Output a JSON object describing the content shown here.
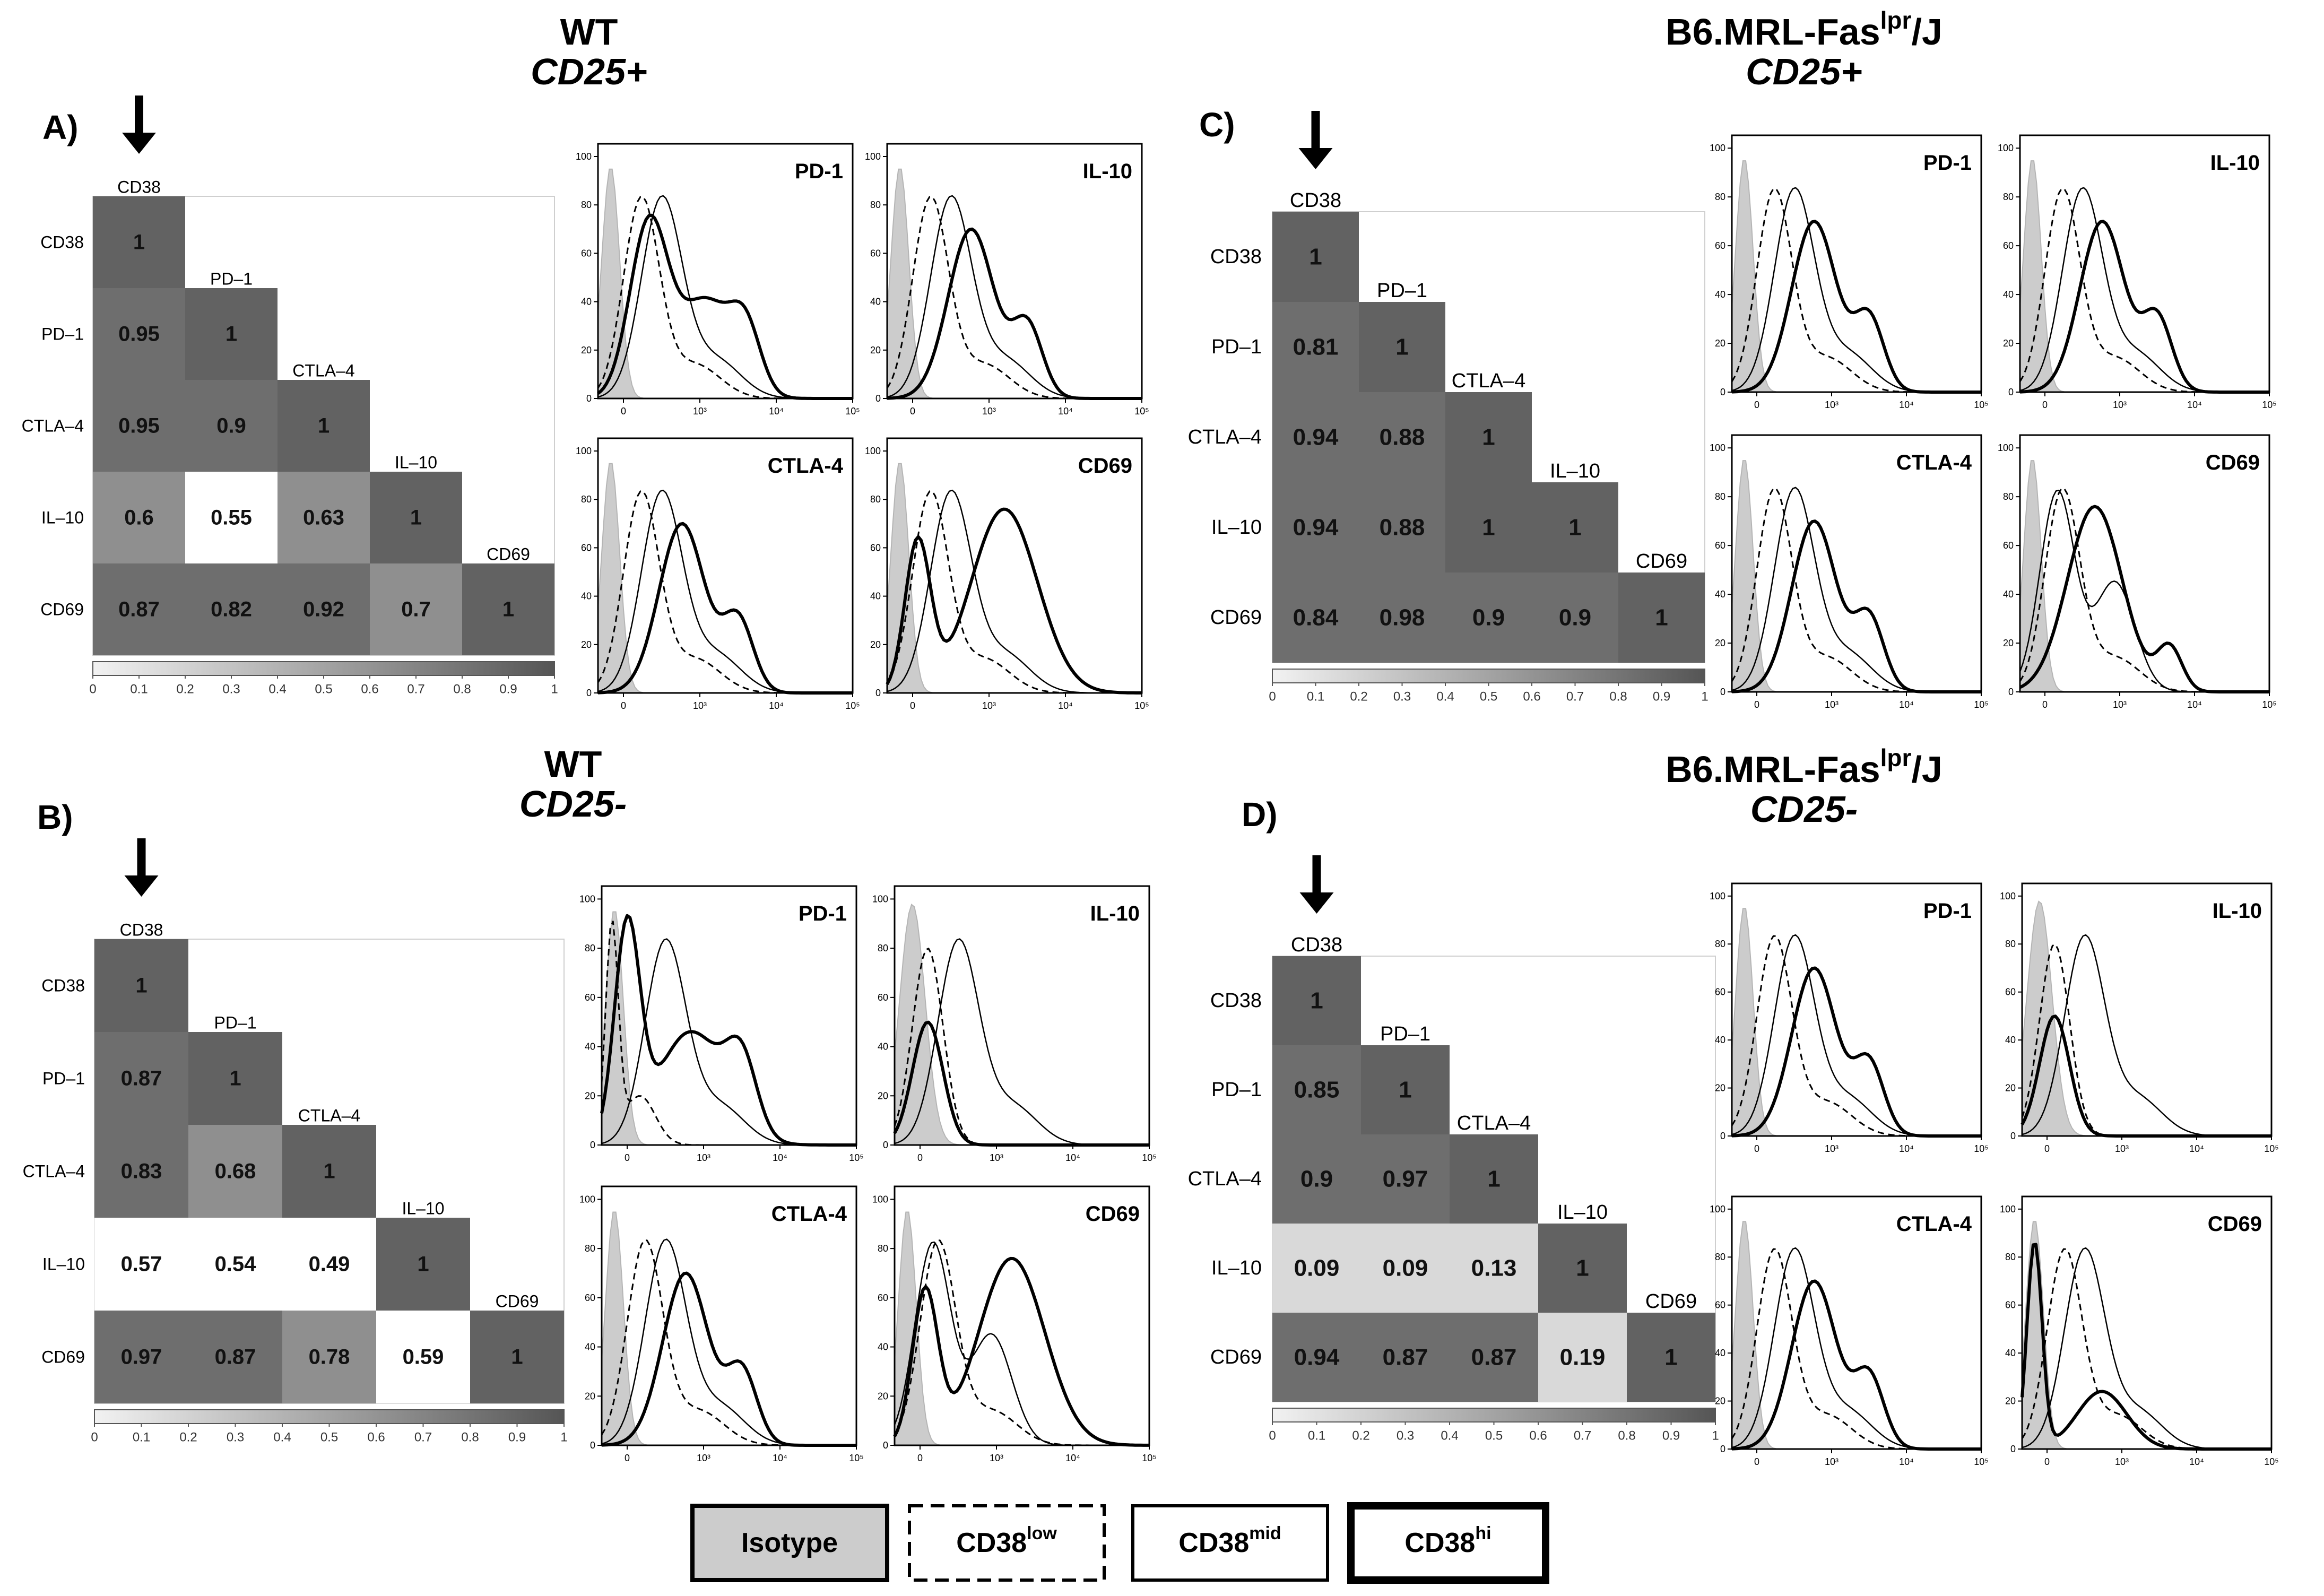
{
  "labels": {
    "cd38": "CD38",
    "pd1": "PD–1",
    "ctla4": "CTLA–4",
    "il10": "IL–10",
    "cd69": "CD69"
  },
  "legend": {
    "isotype": "Isotype",
    "low_base": "CD38",
    "low_sup": "low",
    "mid_base": "CD38",
    "mid_sup": "mid",
    "hi_base": "CD38",
    "hi_sup": "hi"
  },
  "colors": {
    "cell_dark": "#626262",
    "isotype_fill": "#cccccc",
    "ink": "#000000"
  },
  "chart_data": [
    {
      "panel": "A)",
      "strain": "WT",
      "subset": "CD25+",
      "type": "heatmap",
      "variables": [
        "CD38",
        "PD–1",
        "CTLA–4",
        "IL–10",
        "CD69"
      ],
      "matrix": [
        [
          1
        ],
        [
          0.95,
          1
        ],
        [
          0.95,
          0.9,
          1
        ],
        [
          0.6,
          0.55,
          0.63,
          1
        ],
        [
          0.87,
          0.82,
          0.92,
          0.7,
          1
        ]
      ],
      "colorbar_ticks": [
        "0",
        "0.1",
        "0.2",
        "0.3",
        "0.4",
        "0.5",
        "0.6",
        "0.7",
        "0.8",
        "0.9",
        "1"
      ],
      "histograms": [
        "PD-1",
        "IL-10",
        "CTLA-4",
        "CD69"
      ]
    },
    {
      "panel": "B)",
      "strain": "WT",
      "subset": "CD25-",
      "type": "heatmap",
      "variables": [
        "CD38",
        "PD–1",
        "CTLA–4",
        "IL–10",
        "CD69"
      ],
      "matrix": [
        [
          1
        ],
        [
          0.87,
          1
        ],
        [
          0.83,
          0.68,
          1
        ],
        [
          0.57,
          0.54,
          0.49,
          1
        ],
        [
          0.97,
          0.87,
          0.78,
          0.59,
          1
        ]
      ],
      "colorbar_ticks": [
        "0",
        "0.1",
        "0.2",
        "0.3",
        "0.4",
        "0.5",
        "0.6",
        "0.7",
        "0.8",
        "0.9",
        "1"
      ],
      "histograms": [
        "PD-1",
        "IL-10",
        "CTLA-4",
        "CD69"
      ]
    },
    {
      "panel": "C)",
      "strain_base": "B6.MRL-Fas",
      "strain_sup": "lpr",
      "strain_tail": "/J",
      "subset": "CD25+",
      "type": "heatmap",
      "variables": [
        "CD38",
        "PD–1",
        "CTLA–4",
        "IL–10",
        "CD69"
      ],
      "matrix": [
        [
          1
        ],
        [
          0.81,
          1
        ],
        [
          0.94,
          0.88,
          1
        ],
        [
          0.94,
          0.88,
          1,
          1
        ],
        [
          0.84,
          0.98,
          0.9,
          0.9,
          1
        ]
      ],
      "colorbar_ticks": [
        "0",
        "0.1",
        "0.2",
        "0.3",
        "0.4",
        "0.5",
        "0.6",
        "0.7",
        "0.8",
        "0.9",
        "1"
      ],
      "histograms": [
        "PD-1",
        "IL-10",
        "CTLA-4",
        "CD69"
      ]
    },
    {
      "panel": "D)",
      "strain_base": "B6.MRL-Fas",
      "strain_sup": "lpr",
      "strain_tail": "/J",
      "subset": "CD25-",
      "type": "heatmap",
      "variables": [
        "CD38",
        "PD–1",
        "CTLA–4",
        "IL–10",
        "CD69"
      ],
      "matrix": [
        [
          1
        ],
        [
          0.85,
          1
        ],
        [
          0.9,
          0.97,
          1
        ],
        [
          0.09,
          0.09,
          0.13,
          1
        ],
        [
          0.94,
          0.87,
          0.87,
          0.19,
          1
        ]
      ],
      "colorbar_ticks": [
        "0",
        "0.1",
        "0.2",
        "0.3",
        "0.4",
        "0.5",
        "0.6",
        "0.7",
        "0.8",
        "0.9",
        "1"
      ],
      "histograms": [
        "PD-1",
        "IL-10",
        "CTLA-4",
        "CD69"
      ]
    }
  ],
  "histogram_axes": {
    "y_ticks": [
      "0",
      "20",
      "40",
      "60",
      "80",
      "100"
    ],
    "x_ticks": [
      "0",
      "10³",
      "10⁴",
      "10⁵"
    ]
  }
}
